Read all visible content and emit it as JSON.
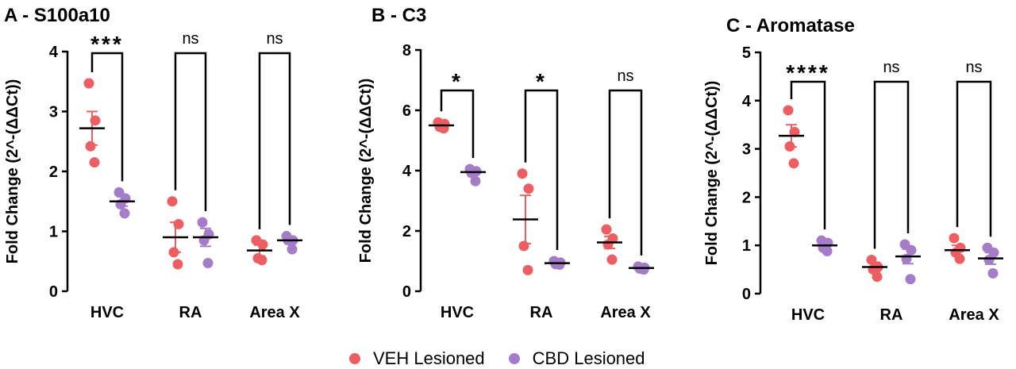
{
  "colors": {
    "veh": "#EC5E62",
    "cbd": "#A47CC8",
    "axis": "#000000"
  },
  "legend": {
    "veh_label": "VEH Lesioned",
    "cbd_label": "CBD Lesioned"
  },
  "chart_data": [
    {
      "type": "scatter",
      "title": "A - S100a10",
      "ylabel": "Fold Change (2^-(ΔΔCt))",
      "ylim": [
        0,
        4
      ],
      "yticks": [
        0,
        1,
        2,
        3,
        4
      ],
      "categories": [
        "HVC",
        "RA",
        "Area X"
      ],
      "significance": [
        "***",
        "ns",
        "ns"
      ],
      "series": [
        {
          "name": "VEH Lesioned",
          "color_key": "veh",
          "points": [
            [
              3.47,
              2.85,
              2.42,
              2.15
            ],
            [
              1.5,
              1.12,
              0.65,
              0.45
            ],
            [
              0.85,
              0.78,
              0.55,
              0.52
            ]
          ],
          "mean": [
            2.72,
            0.9,
            0.68
          ],
          "sem": [
            0.28,
            0.25,
            0.09
          ]
        },
        {
          "name": "CBD Lesioned",
          "color_key": "cbd",
          "points": [
            [
              1.65,
              1.55,
              1.45,
              1.3
            ],
            [
              1.15,
              0.95,
              0.85,
              0.47
            ],
            [
              0.92,
              0.85,
              0.85,
              0.7
            ]
          ],
          "mean": [
            1.5,
            0.9,
            0.85
          ],
          "sem": [
            0.08,
            0.15,
            0.05
          ]
        }
      ]
    },
    {
      "type": "scatter",
      "title": "B - C3",
      "ylabel": "Fold Change (2^-(ΔΔCt))",
      "ylim": [
        0,
        8
      ],
      "yticks": [
        0,
        2,
        4,
        6,
        8
      ],
      "categories": [
        "HVC",
        "RA",
        "Area X"
      ],
      "significance": [
        "*",
        "*",
        "ns"
      ],
      "series": [
        {
          "name": "VEH Lesioned",
          "color_key": "veh",
          "points": [
            [
              5.6,
              5.55,
              5.45,
              5.4
            ],
            [
              3.9,
              3.4,
              1.5,
              0.7
            ],
            [
              2.05,
              1.75,
              1.55,
              1.05
            ]
          ],
          "mean": [
            5.5,
            2.38,
            1.62
          ],
          "sem": [
            0.05,
            0.8,
            0.2
          ]
        },
        {
          "name": "CBD Lesioned",
          "color_key": "cbd",
          "points": [
            [
              4.05,
              3.98,
              3.92,
              3.65
            ],
            [
              1.0,
              0.95,
              0.9,
              0.88
            ],
            [
              0.82,
              0.78,
              0.75,
              0.72
            ]
          ],
          "mean": [
            3.95,
            0.93,
            0.77
          ],
          "sem": [
            0.08,
            0.03,
            0.02
          ]
        }
      ]
    },
    {
      "type": "scatter",
      "title": "C - Aromatase",
      "ylabel": "Fold Change (2^-(ΔΔCt))",
      "ylim": [
        0,
        5
      ],
      "yticks": [
        0,
        1,
        2,
        3,
        4,
        5
      ],
      "categories": [
        "HVC",
        "RA",
        "Area X"
      ],
      "significance": [
        "****",
        "ns",
        "ns"
      ],
      "series": [
        {
          "name": "VEH Lesioned",
          "color_key": "veh",
          "points": [
            [
              3.8,
              3.35,
              3.05,
              2.7
            ],
            [
              0.7,
              0.55,
              0.5,
              0.35
            ],
            [
              1.15,
              0.95,
              0.85,
              0.72
            ]
          ],
          "mean": [
            3.27,
            0.55,
            0.9
          ],
          "sem": [
            0.23,
            0.1,
            0.1
          ]
        },
        {
          "name": "CBD Lesioned",
          "color_key": "cbd",
          "points": [
            [
              1.1,
              1.05,
              0.95,
              0.88
            ],
            [
              1.02,
              0.9,
              0.72,
              0.3
            ],
            [
              0.95,
              0.85,
              0.7,
              0.42
            ]
          ],
          "mean": [
            1.0,
            0.77,
            0.73
          ],
          "sem": [
            0.05,
            0.15,
            0.12
          ]
        }
      ]
    }
  ]
}
